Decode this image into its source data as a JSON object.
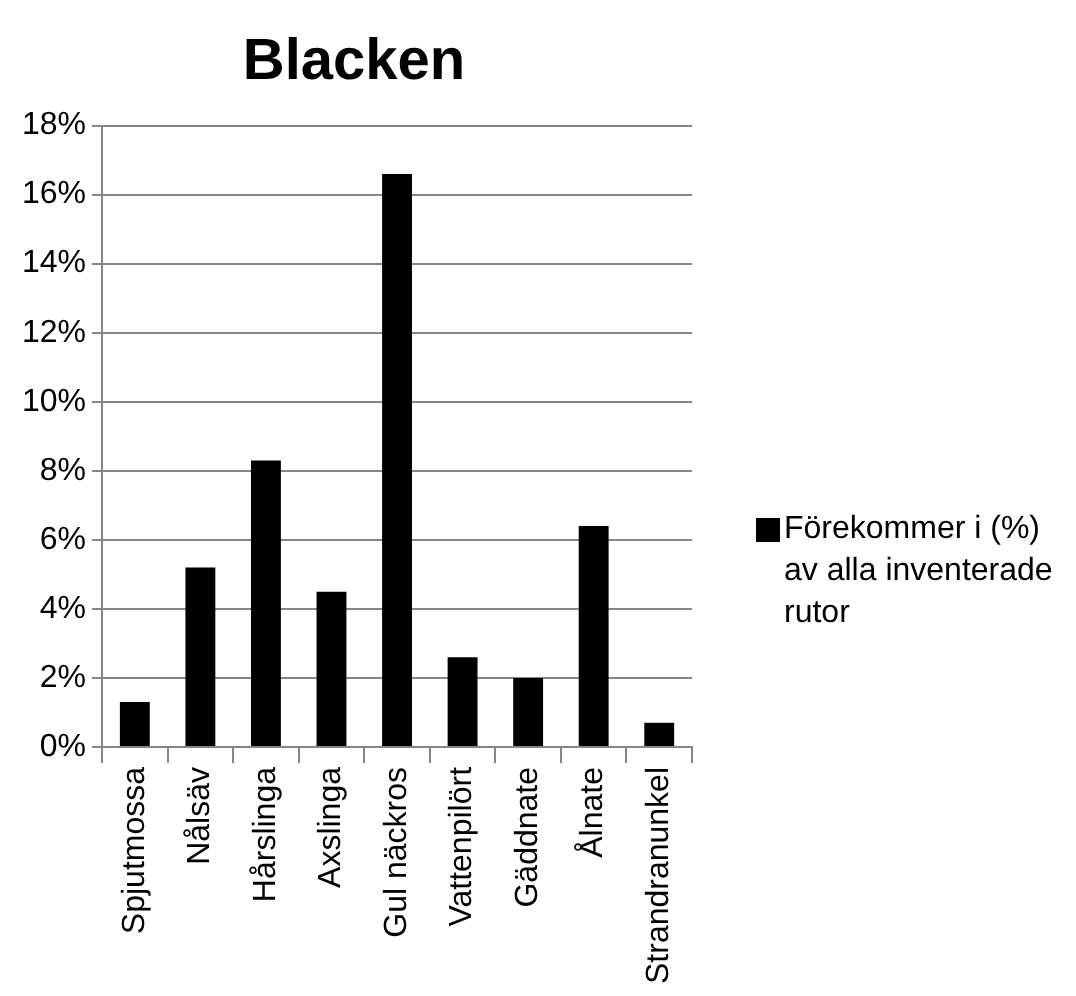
{
  "chart_data": {
    "type": "bar",
    "title": "Blacken",
    "categories": [
      "Spjutmossa",
      "Nålsäv",
      "Hårslinga",
      "Axslinga",
      "Gul näckros",
      "Vattenpilört",
      "Gäddnate",
      "Ålnate",
      "Strandranunkel"
    ],
    "series": [
      {
        "name": "Förekommer i (%) av alla inventerade rutor",
        "color": "#000000",
        "values": [
          1.3,
          5.2,
          8.3,
          4.5,
          16.6,
          2.6,
          2.0,
          6.4,
          0.7
        ]
      }
    ],
    "ylim": [
      0,
      18
    ],
    "yticks": [
      {
        "value": 0,
        "label": "0%"
      },
      {
        "value": 2,
        "label": "2%"
      },
      {
        "value": 4,
        "label": "4%"
      },
      {
        "value": 6,
        "label": "6%"
      },
      {
        "value": 8,
        "label": "8%"
      },
      {
        "value": 10,
        "label": "10%"
      },
      {
        "value": 12,
        "label": "12%"
      },
      {
        "value": 14,
        "label": "14%"
      },
      {
        "value": 16,
        "label": "16%"
      },
      {
        "value": 18,
        "label": "18%"
      }
    ],
    "grid": "y",
    "legend": "right"
  }
}
